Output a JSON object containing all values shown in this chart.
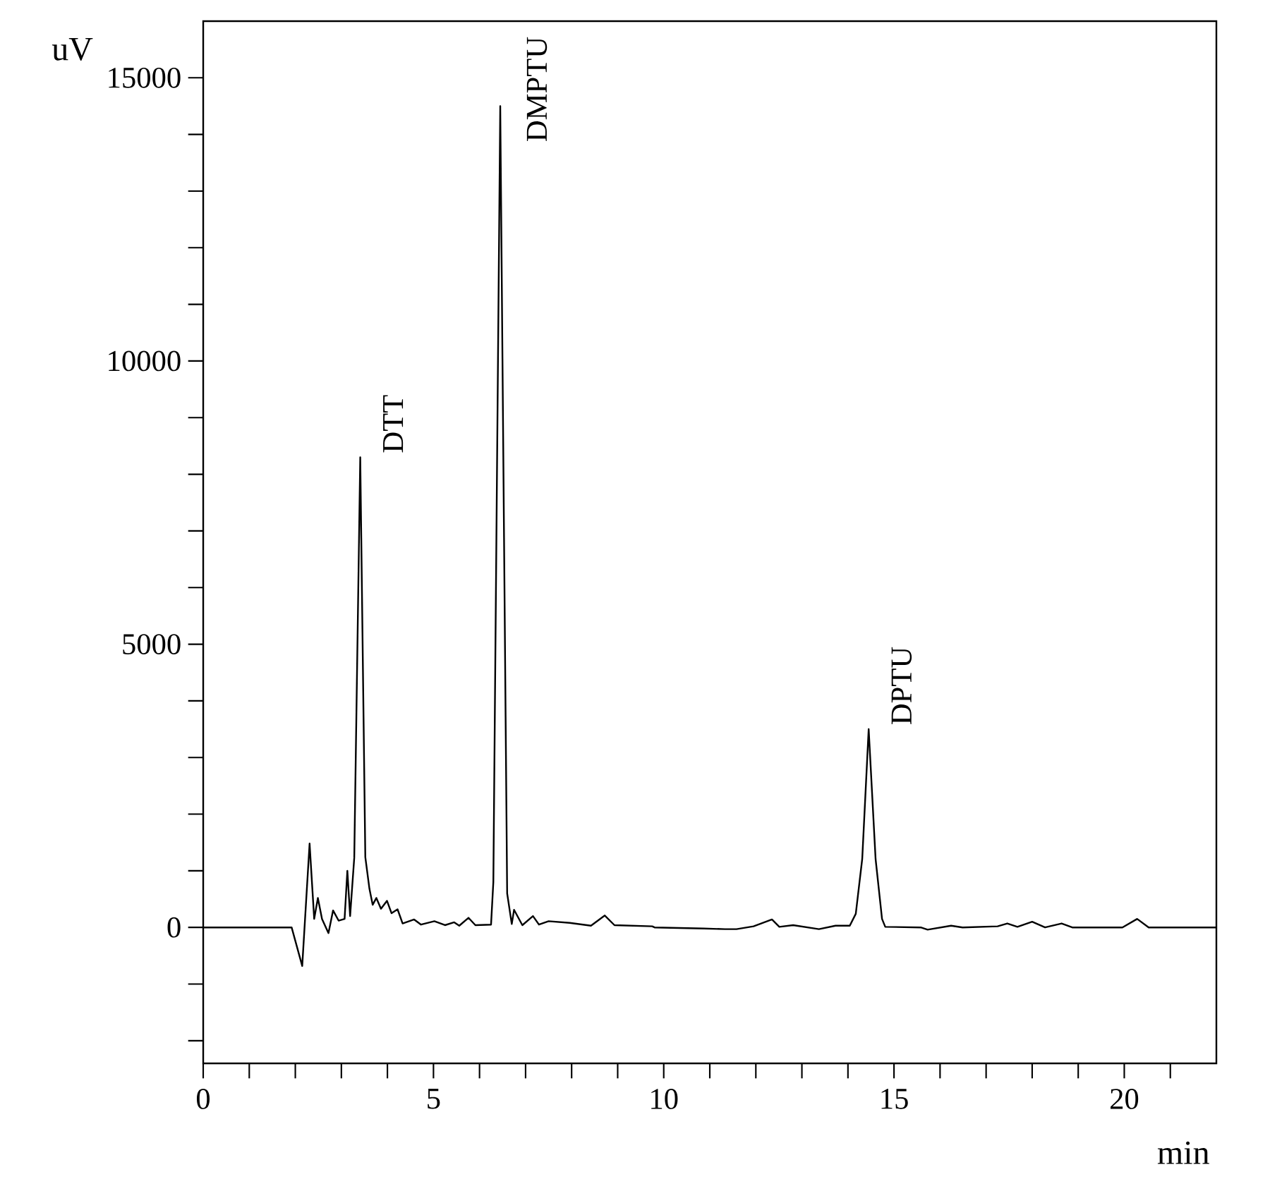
{
  "chart_data": {
    "type": "line",
    "xlabel": "min",
    "ylabel": "uV",
    "x": [
      0,
      1.92,
      2.15,
      2.31,
      2.41,
      2.49,
      2.58,
      2.72,
      2.82,
      2.94,
      3.07,
      3.13,
      3.19,
      3.28,
      3.41,
      3.52,
      3.61,
      3.68,
      3.76,
      3.86,
      3.99,
      4.09,
      4.22,
      4.33,
      4.58,
      4.73,
      5.02,
      5.25,
      5.45,
      5.56,
      5.76,
      5.91,
      6.25,
      6.3,
      6.45,
      6.6,
      6.7,
      6.75,
      6.93,
      7.16,
      7.29,
      7.5,
      7.96,
      8.42,
      8.72,
      8.93,
      9.75,
      9.8,
      10.87,
      11.33,
      11.58,
      11.95,
      12.35,
      12.51,
      12.81,
      13.37,
      13.73,
      14.04,
      14.17,
      14.31,
      14.45,
      14.6,
      14.74,
      14.81,
      15.58,
      15.73,
      16.24,
      16.49,
      17.25,
      17.46,
      17.68,
      18.0,
      18.28,
      18.64,
      18.87,
      19.96,
      20.28,
      20.53,
      22
    ],
    "series": [
      {
        "color": "#000000",
        "values": [
          0,
          0,
          -680,
          1480,
          150,
          520,
          150,
          -100,
          300,
          120,
          150,
          1000,
          200,
          1230,
          8300,
          1240,
          680,
          400,
          520,
          330,
          470,
          250,
          320,
          70,
          140,
          50,
          110,
          40,
          90,
          30,
          170,
          40,
          50,
          800,
          14500,
          600,
          60,
          310,
          40,
          200,
          50,
          110,
          80,
          30,
          210,
          40,
          20,
          0,
          -20,
          -30,
          -30,
          20,
          140,
          10,
          40,
          -30,
          30,
          30,
          240,
          1210,
          3500,
          1210,
          150,
          10,
          0,
          -40,
          30,
          0,
          20,
          70,
          10,
          100,
          0,
          70,
          0,
          0,
          150,
          0,
          0
        ]
      }
    ],
    "xlim": [
      0,
      22
    ],
    "xticks": [
      0,
      {
        "value": 1,
        "label": null
      },
      {
        "value": 2,
        "label": null
      },
      {
        "value": 3,
        "label": null
      },
      {
        "value": 4,
        "label": null
      },
      5,
      {
        "value": 6,
        "label": null
      },
      {
        "value": 7,
        "label": null
      },
      {
        "value": 8,
        "label": null
      },
      {
        "value": 9,
        "label": null
      },
      10,
      {
        "value": 11,
        "label": null
      },
      {
        "value": 12,
        "label": null
      },
      {
        "value": 13,
        "label": null
      },
      {
        "value": 14,
        "label": null
      },
      15,
      {
        "value": 16,
        "label": null
      },
      {
        "value": 17,
        "label": null
      },
      {
        "value": 18,
        "label": null
      },
      {
        "value": 19,
        "label": null
      },
      20,
      {
        "value": 21,
        "label": null
      }
    ],
    "ylim": [
      -2400,
      16000
    ],
    "yticks": [
      {
        "value": -2000,
        "label": null
      },
      {
        "value": -1000,
        "label": null
      },
      0,
      {
        "value": 1000,
        "label": null
      },
      {
        "value": 2000,
        "label": null
      },
      {
        "value": 3000,
        "label": null
      },
      {
        "value": 4000,
        "label": null
      },
      5000,
      {
        "value": 6000,
        "label": null
      },
      {
        "value": 7000,
        "label": null
      },
      {
        "value": 8000,
        "label": null
      },
      {
        "value": 9000,
        "label": null
      },
      10000,
      {
        "value": 11000,
        "label": null
      },
      {
        "value": 12000,
        "label": null
      },
      {
        "value": 13000,
        "label": null
      },
      {
        "value": 14000,
        "label": null
      },
      15000
    ],
    "marker": "none",
    "line_style": "solid",
    "annotations": [
      {
        "text": "DTT",
        "x": 3.41,
        "y": 8300
      },
      {
        "text": "DMPTU",
        "x": 6.45,
        "y": 14500
      },
      {
        "text": "DPTU",
        "x": 14.45,
        "y": 3500
      }
    ]
  }
}
